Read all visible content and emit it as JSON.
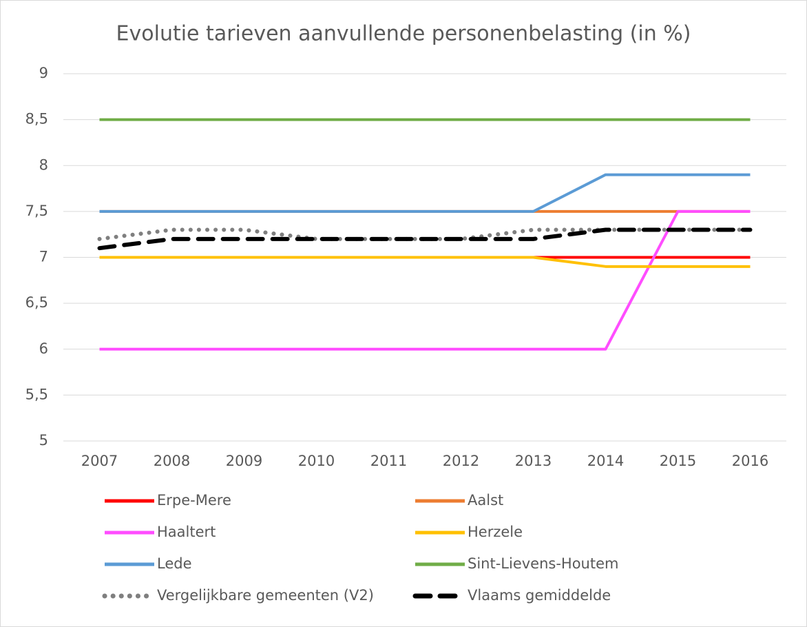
{
  "chart_data": {
    "type": "line",
    "title": "Evolutie tarieven aanvullende personenbelasting (in %)",
    "categories": [
      "2007",
      "2008",
      "2009",
      "2010",
      "2011",
      "2012",
      "2013",
      "2014",
      "2015",
      "2016"
    ],
    "series": [
      {
        "name": "Erpe-Mere",
        "color": "#ff0000",
        "line_style": "solid",
        "values": [
          7,
          7,
          7,
          7,
          7,
          7,
          7,
          7,
          7,
          7
        ]
      },
      {
        "name": "Aalst",
        "color": "#ed7d31",
        "line_style": "solid",
        "values": [
          7.5,
          7.5,
          7.5,
          7.5,
          7.5,
          7.5,
          7.5,
          7.5,
          7.5,
          7.5
        ]
      },
      {
        "name": "Haaltert",
        "color": "#ff4dff",
        "line_style": "solid",
        "values": [
          6,
          6,
          6,
          6,
          6,
          6,
          6,
          6,
          7.5,
          7.5
        ]
      },
      {
        "name": "Herzele",
        "color": "#ffc000",
        "line_style": "solid",
        "values": [
          7,
          7,
          7,
          7,
          7,
          7,
          7,
          6.9,
          6.9,
          6.9
        ]
      },
      {
        "name": "Lede",
        "color": "#5b9bd5",
        "line_style": "solid",
        "values": [
          7.5,
          7.5,
          7.5,
          7.5,
          7.5,
          7.5,
          7.5,
          7.9,
          7.9,
          7.9
        ]
      },
      {
        "name": "Sint-Lievens-Houtem",
        "color": "#70ad47",
        "line_style": "solid",
        "values": [
          8.5,
          8.5,
          8.5,
          8.5,
          8.5,
          8.5,
          8.5,
          8.5,
          8.5,
          8.5
        ]
      },
      {
        "name": "Vergelijkbare gemeenten (V2)",
        "color": "#7f7f7f",
        "line_style": "dotted",
        "values": [
          7.2,
          7.3,
          7.3,
          7.2,
          7.2,
          7.2,
          7.3,
          7.3,
          7.3,
          7.3
        ]
      },
      {
        "name": "Vlaams gemiddelde",
        "color": "#000000",
        "line_style": "dashed",
        "values": [
          7.1,
          7.2,
          7.2,
          7.2,
          7.2,
          7.2,
          7.2,
          7.3,
          7.3,
          7.3
        ]
      }
    ],
    "ylim": [
      5,
      9
    ],
    "yticks": [
      5,
      {
        "value": 5.5,
        "label": "5,5"
      },
      6,
      {
        "value": 6.5,
        "label": "6,5"
      },
      7,
      {
        "value": 7.5,
        "label": "7,5"
      },
      8,
      {
        "value": 8.5,
        "label": "8,5"
      },
      9
    ],
    "grid": true,
    "legend": "bottom"
  }
}
